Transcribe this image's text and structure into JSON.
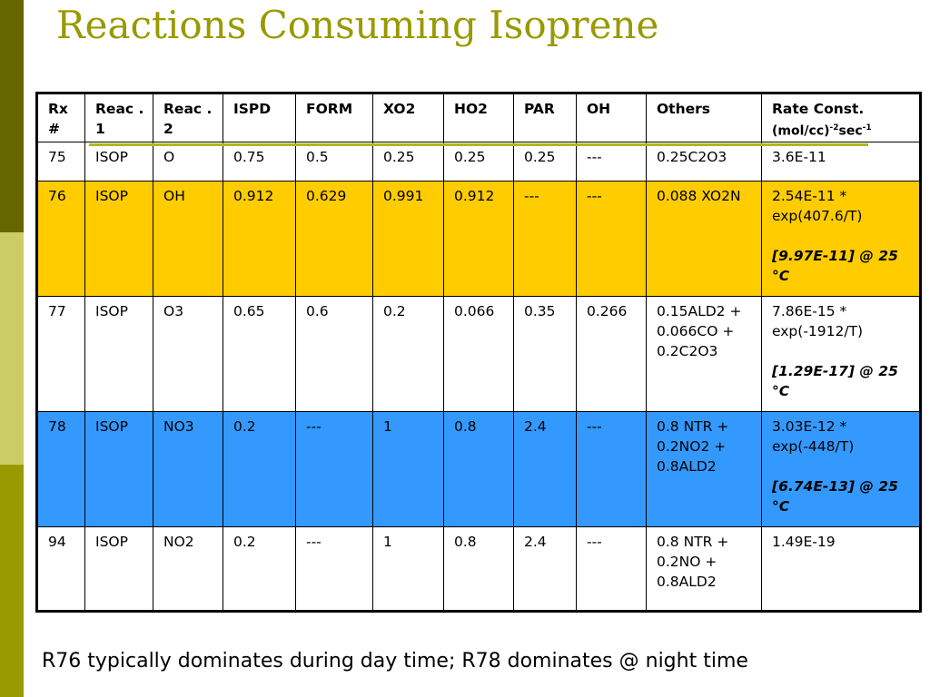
{
  "title": "Reactions Consuming Isoprene",
  "table": {
    "headers": [
      "Rx #",
      "Reac . 1",
      "Reac . 2",
      "ISPD",
      "FORM",
      "XO2",
      "HO2",
      "PAR",
      "OH",
      "Others"
    ],
    "rate_header": {
      "label": "Rate Const.",
      "units_prefix": "(mol/cc)",
      "exp1": "-2",
      "mid": "sec",
      "exp2": "-1"
    },
    "rows": [
      {
        "id": "75",
        "cells": [
          "75",
          "ISOP",
          "O",
          "0.75",
          "0.5",
          "0.25",
          "0.25",
          "0.25",
          "---",
          "0.25C2O3"
        ],
        "rate": "3.6E-11",
        "rate_note": "",
        "highlight": "none"
      },
      {
        "id": "76",
        "cells": [
          "76",
          "ISOP",
          "OH",
          "0.912",
          "0.629",
          "0.991",
          "0.912",
          "---",
          "---",
          "0.088 XO2N"
        ],
        "rate": "2.54E-11 * exp(407.6/T)",
        "rate_note": "[9.97E-11] @ 25 °C",
        "highlight": "yellow"
      },
      {
        "id": "77",
        "cells": [
          "77",
          "ISOP",
          "O3",
          "0.65",
          "0.6",
          "0.2",
          "0.066",
          "0.35",
          "0.266",
          "0.15ALD2 + 0.066CO + 0.2C2O3"
        ],
        "rate": "7.86E-15 * exp(-1912/T)",
        "rate_note": "[1.29E-17] @ 25 °C",
        "highlight": "none"
      },
      {
        "id": "78",
        "cells": [
          "78",
          "ISOP",
          "NO3",
          "0.2",
          "---",
          "1",
          "0.8",
          "2.4",
          "---",
          "0.8 NTR + 0.2NO2 + 0.8ALD2"
        ],
        "rate": "3.03E-12 * exp(-448/T)",
        "rate_note": "[6.74E-13] @ 25 °C",
        "highlight": "blue"
      },
      {
        "id": "94",
        "cells": [
          "94",
          "ISOP",
          "NO2",
          "0.2",
          "---",
          "1",
          "0.8",
          "2.4",
          "---",
          "0.8 NTR + 0.2NO + 0.8ALD2"
        ],
        "rate": "1.49E-19",
        "rate_note": "",
        "highlight": "none"
      }
    ]
  },
  "footer": "R76 typically dominates during day time; R78 dominates @ night time",
  "colors": {
    "title": "#999900",
    "highlight_yellow": "#ffcc00",
    "highlight_blue": "#3399ff",
    "bar_dark": "#666600",
    "bar_light": "#cccc66",
    "bar_mid": "#999900"
  }
}
